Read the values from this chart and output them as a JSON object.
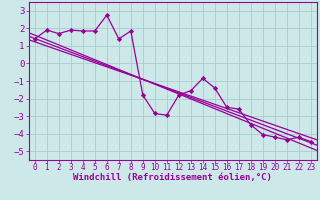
{
  "background_color": "#cce8e8",
  "grid_color": "#aacccc",
  "line_color": "#990099",
  "xlim": [
    -0.5,
    23.5
  ],
  "ylim": [
    -5.5,
    3.5
  ],
  "yticks": [
    3,
    2,
    1,
    0,
    -1,
    -2,
    -3,
    -4,
    -5
  ],
  "xticks": [
    0,
    1,
    2,
    3,
    4,
    5,
    6,
    7,
    8,
    9,
    10,
    11,
    12,
    13,
    14,
    15,
    16,
    17,
    18,
    19,
    20,
    21,
    22,
    23
  ],
  "xlabel": "Windchill (Refroidissement éolien,°C)",
  "xlabel_fontsize": 6.5,
  "xtick_fontsize": 5.5,
  "ytick_fontsize": 6.5,
  "line1_x": [
    0,
    1,
    2,
    3,
    4,
    5,
    6,
    7,
    8,
    9,
    10,
    11,
    12,
    13,
    14,
    15,
    16,
    17,
    18,
    19,
    20,
    21,
    22,
    23
  ],
  "line1_y": [
    1.4,
    1.9,
    1.7,
    1.9,
    1.85,
    1.85,
    2.75,
    1.4,
    1.85,
    -1.8,
    -2.85,
    -2.95,
    -1.8,
    -1.55,
    -0.85,
    -1.4,
    -2.5,
    -2.6,
    -3.5,
    -4.05,
    -4.2,
    -4.35,
    -4.2,
    -4.45
  ],
  "line2_x": [
    -0.5,
    23.5
  ],
  "line2_y": [
    1.55,
    -4.65
  ],
  "line3_x": [
    -0.5,
    23.5
  ],
  "line3_y": [
    1.75,
    -4.95
  ],
  "line4_x": [
    -0.5,
    23.5
  ],
  "line4_y": [
    1.35,
    -4.35
  ]
}
